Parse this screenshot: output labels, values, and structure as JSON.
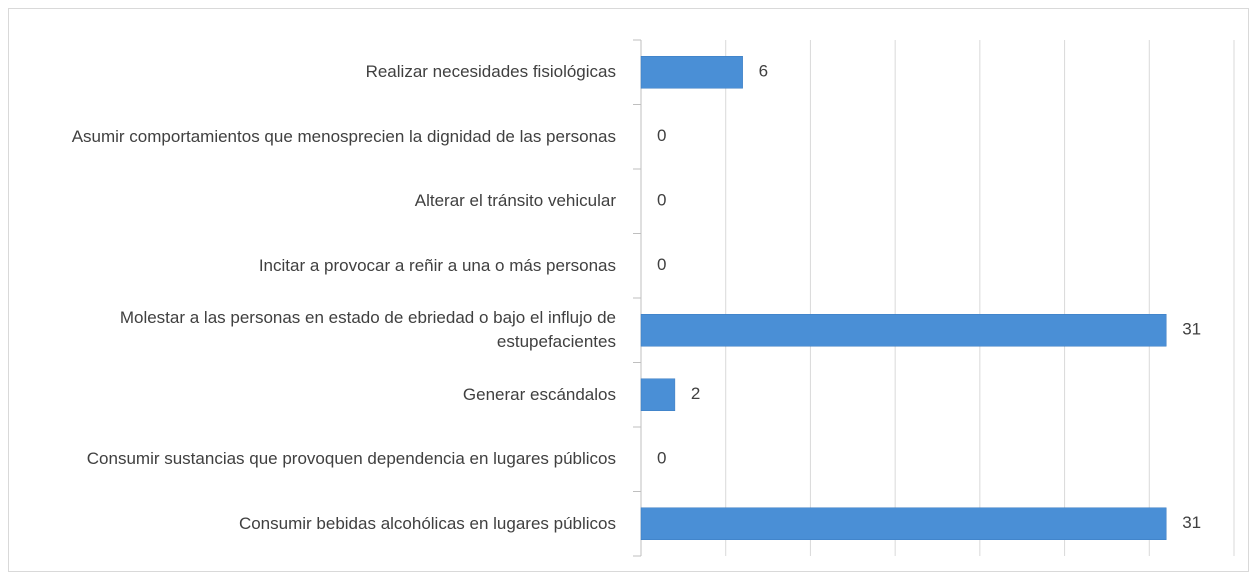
{
  "chart_data": {
    "type": "bar",
    "orientation": "horizontal",
    "categories": [
      "Realizar necesidades fisiológicas",
      "Asumir comportamientos que menosprecien la dignidad de las personas",
      "Alterar el tránsito vehicular",
      "Incitar a provocar a reñir a una o más personas",
      "Molestar a las personas en estado de ebriedad o bajo el influjo de estupefacientes",
      "Generar escándalos",
      "Consumir sustancias que provoquen dependencia en lugares públicos",
      "Consumir bebidas alcohólicas en lugares públicos"
    ],
    "values": [
      6,
      0,
      0,
      0,
      31,
      2,
      0,
      31
    ],
    "color": "#4a8fd6",
    "xlim": [
      0,
      35
    ],
    "xticks": [
      0,
      5,
      10,
      15,
      20,
      25,
      30,
      35
    ],
    "grid": true
  }
}
